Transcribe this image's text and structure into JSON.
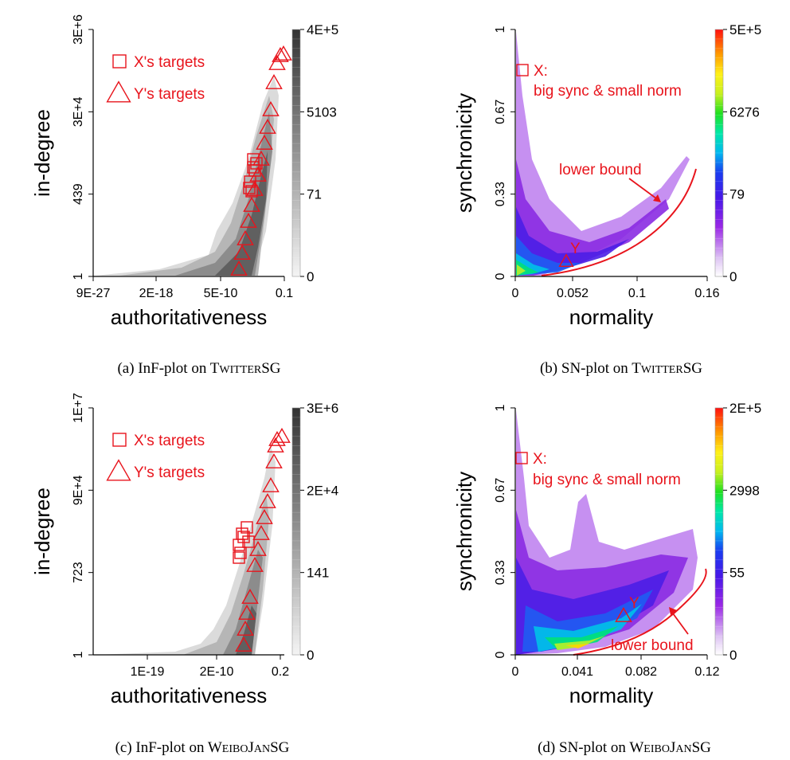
{
  "chart_data": [
    {
      "id": "a",
      "type": "heatmap",
      "caption": {
        "prefix": "(a) InF-plot on ",
        "dataset": [
          "T",
          "WITTER",
          "SG"
        ]
      },
      "xlabel": "authoritativeness",
      "ylabel": "in-degree",
      "xscale": "log",
      "yscale": "log",
      "x_ticks": [
        "9E-27",
        "2E-18",
        "5E-10",
        "0.1"
      ],
      "y_ticks": [
        "1",
        "439",
        "3E+4",
        "3E+6"
      ],
      "colorbar": {
        "palette": "gray",
        "ticks": [
          "0",
          "71",
          "5103",
          "4E+5"
        ]
      },
      "legend": {
        "placement": "top-left",
        "entries": [
          {
            "marker": "square",
            "label": "X's targets"
          },
          {
            "marker": "triangle",
            "label": "Y's targets"
          }
        ]
      },
      "annotations": []
    },
    {
      "id": "b",
      "type": "heatmap",
      "caption": {
        "prefix": "(b) SN-plot on ",
        "dataset": [
          "T",
          "WITTER",
          "SG"
        ]
      },
      "xlabel": "normality",
      "ylabel": "synchronicity",
      "x_ticks": [
        "0",
        "0.052",
        "0.1",
        "0.16"
      ],
      "y_ticks": [
        "0",
        "0.33",
        "0.67",
        "1"
      ],
      "xlim": [
        0,
        0.16
      ],
      "ylim": [
        0,
        1
      ],
      "colorbar": {
        "palette": "rainbow",
        "ticks": [
          "0",
          "79",
          "6276",
          "5E+5"
        ]
      },
      "annotations": [
        {
          "marker": "square",
          "label": "X:",
          "detail": "big sync & small norm"
        },
        {
          "marker": "triangle",
          "label": "Y"
        },
        {
          "label": "lower bound"
        }
      ]
    },
    {
      "id": "c",
      "type": "heatmap",
      "caption": {
        "prefix": "(c) InF-plot on ",
        "dataset": [
          "W",
          "EIBO",
          "J",
          "AN",
          "SG"
        ]
      },
      "xlabel": "authoritativeness",
      "ylabel": "in-degree",
      "xscale": "log",
      "yscale": "log",
      "x_ticks": [
        "1E-19",
        "2E-10",
        "0.2"
      ],
      "y_ticks": [
        "1",
        "723",
        "9E+4",
        "1E+7"
      ],
      "colorbar": {
        "palette": "gray",
        "ticks": [
          "0",
          "141",
          "2E+4",
          "3E+6"
        ]
      },
      "legend": {
        "placement": "top-left",
        "entries": [
          {
            "marker": "square",
            "label": "X's targets"
          },
          {
            "marker": "triangle",
            "label": "Y's targets"
          }
        ]
      },
      "annotations": []
    },
    {
      "id": "d",
      "type": "heatmap",
      "caption": {
        "prefix": "(d) SN-plot on ",
        "dataset": [
          "W",
          "EIBO",
          "J",
          "AN",
          "SG"
        ]
      },
      "xlabel": "normality",
      "ylabel": "synchronicity",
      "x_ticks": [
        "0",
        "0.041",
        "0.082",
        "0.12"
      ],
      "y_ticks": [
        "0",
        "0.33",
        "0.67",
        "1"
      ],
      "xlim": [
        0,
        0.12
      ],
      "ylim": [
        0,
        1
      ],
      "colorbar": {
        "palette": "rainbow",
        "ticks": [
          "0",
          "55",
          "2998",
          "2E+5"
        ]
      },
      "annotations": [
        {
          "marker": "square",
          "label": "X:",
          "detail": "big sync & small norm"
        },
        {
          "marker": "triangle",
          "label": "Y"
        },
        {
          "label": "lower bound"
        }
      ]
    }
  ],
  "colors": {
    "annotation": "#e8141c",
    "gray_dark": "#3c3c3c",
    "gray_light": "#f2f2f2"
  }
}
